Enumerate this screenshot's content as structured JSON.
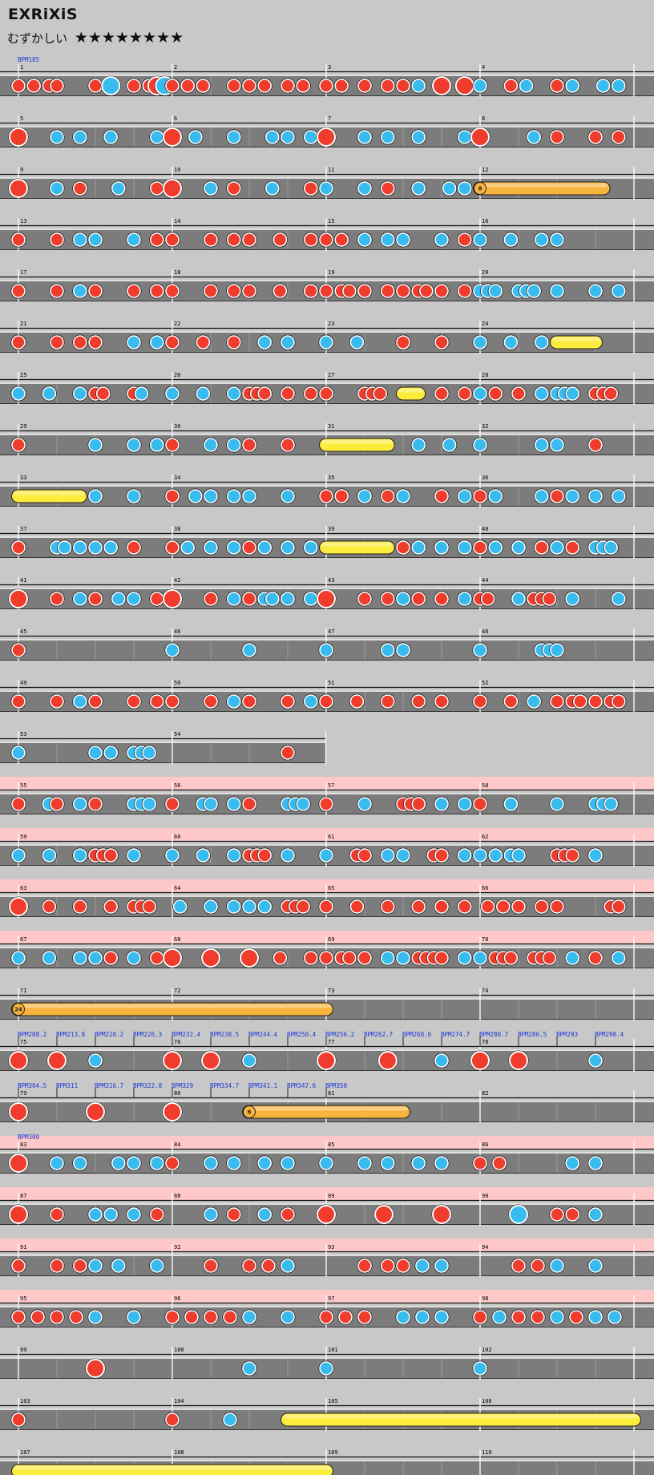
{
  "song": {
    "title": "EXRiXiS",
    "difficulty_label": "むずかしい",
    "stars": "★★★★★★★★"
  },
  "colors": {
    "background": "#c8c8c8",
    "gogo_band": "#ffc8c8",
    "lane": "#7c7c7c",
    "don": "#f03c2c",
    "ka": "#38bcf0",
    "roll": "#f8b43c",
    "balloon_roll": "#fcec3c"
  },
  "chart_data": {
    "type": "table",
    "measures_per_row": 4,
    "rows": [
      {
        "m": 1,
        "notes": "d:0.0 d:0.1 d:0.2 d:0.25 d:0.5 d:0.75 K:0.6 d:0.85 D:0.9 K:0.95 d:1.0 d:1.1 d:1.2 d:1.4 d:1.5 d:1.6 d:1.75 d:1.85 d:2.0 d:2.1 d:2.25 d:2.4 d:2.5 k:2.6 D:2.75 D:2.9 k:3.0 d:3.2 k:3.3 k:3.5 d:3.5 k:3.6 k:3.8 k:3.9",
        "bpm": [
          "BPM185"
        ]
      },
      {
        "m": 5,
        "notes": "D:0.0 k:0.25 k:0.4 k:0.6 k:0.9 D:1.0 k:1.15 k:1.4 k:1.65 k:1.75 k:1.9 D:2.0 k:2.25 k:2.4 k:2.6 k:2.9 D:3.0 k:3.35 d:3.5 d:3.75 d:3.9"
      },
      {
        "m": 9,
        "notes": "D:0.0 k:0.25 d:0.4 k:0.65 d:0.9 D:1.0 k:1.25 d:1.4 k:1.65 d:1.9 k:2.0 k:2.25 d:2.4 k:2.6 k:2.8 k:2.9 B:3.0-3.8:8"
      },
      {
        "m": 13,
        "notes": "d:0.0 d:0.25 k:0.4 k:0.5 k:0.75 d:0.9 d:1.0 d:1.25 d:1.4 d:1.5 d:1.7 d:1.9 d:2.0 d:2.1 k:2.25 k:2.4 k:2.5 k:2.75 d:2.9 k:3.0 k:3.2 k:3.4 k:3.5"
      },
      {
        "m": 17,
        "notes": "d:0.0 d:0.25 k:0.4 d:0.5 d:0.75 d:0.9 d:1.0 d:1.25 d:1.4 d:1.5 d:1.7 d:1.9 d:2.0 d:2.1 d:2.15 d:2.25 d:2.4 d:2.5 d:2.6 d:2.65 d:2.75 d:2.9 k:3.0 k:3.05 k:3.1 k:3.25 k:3.3 k:3.35 k:3.5 k:3.75 k:3.9"
      },
      {
        "m": 21,
        "notes": "d:0.0 d:0.25 d:0.4 d:0.5 k:0.75 k:0.9 d:1.0 d:1.2 d:1.4 k:1.6 k:1.75 k:2.0 k:2.2 d:2.5 d:2.75 k:3.0 k:3.2 k:3.4 Y:3.5-3.75"
      },
      {
        "m": 25,
        "notes": "k:0.0 k:0.2 k:0.4 d:0.5 d:0.55 d:0.75 k:0.8 k:1.0 k:1.2 k:1.4 d:1.5 d:1.55 d:1.6 d:1.75 d:1.9 d:2.0 d:2.25 d:2.3 d:2.35 Y:2.5-2.6 d:2.75 d:2.9 k:3.0 d:3.1 d:3.25 k:3.4 k:3.5 k:3.55 k:3.6 d:3.75 d:3.8 d:3.85"
      },
      {
        "m": 29,
        "notes": "d:0.0 k:0.5 k:0.75 k:0.9 d:1.0 k:1.25 k:1.4 d:1.5 d:1.75 Y:2.0-2.4 k:2.6 k:2.8 k:3.0 k:3.4 k:3.5 d:3.75"
      },
      {
        "m": 33,
        "notes": "Y:0.0-0.4 k:0.5 k:0.75 d:1.0 k:1.15 k:1.25 k:1.4 k:1.5 k:1.75 d:2.0 d:2.1 k:2.25 d:2.4 k:2.5 d:2.75 k:2.9 d:3.0 k:3.1 k:3.4 d:3.5 k:3.6 k:3.75 k:3.9"
      },
      {
        "m": 37,
        "notes": "d:0.0 k:0.25 k:0.3 k:0.4 k:0.5 k:0.6 d:0.75 d:1.0 k:1.1 k:1.25 k:1.4 d:1.5 k:1.6 k:1.75 k:1.9 Y:2.0-2.4 d:2.5 k:2.6 k:2.75 k:2.9 d:3.0 k:3.1 k:3.25 d:3.4 k:3.5 d:3.6 k:3.75 k:3.8 k:3.85"
      },
      {
        "m": 41,
        "notes": "D:0.0 d:0.25 k:0.4 d:0.5 k:0.65 k:0.75 d:0.9 D:1.0 d:1.25 k:1.4 d:1.5 k:1.6 k:1.65 k:1.75 k:1.9 D:2.0 d:2.25 d:2.4 k:2.5 d:2.6 d:2.75 k:2.9 d:3.0 d:3.05 k:3.25 d:3.35 d:3.4 d:3.45 k:3.6 k:3.9"
      },
      {
        "m": 45,
        "notes": "d:0.0 k:1.0 k:1.5 k:2.0 k:2.4 k:2.5 k:3.0 k:3.4 k:3.45 k:3.5"
      },
      {
        "m": 49,
        "notes": "d:0.0 d:0.25 k:0.4 d:0.5 d:0.75 d:0.9 d:1.0 d:1.25 k:1.4 d:1.5 d:1.75 k:1.9 d:2.0 d:2.2 d:2.4 d:2.6 d:2.75 d:3.0 d:3.2 k:3.35 d:3.5 d:3.6 d:3.65 d:3.75 d:3.85 d:3.9"
      },
      {
        "m": 53,
        "end": 2.0,
        "notes": "k:0.0 k:0.5 k:0.6 k:0.75 k:0.8 k:0.85 d:1.75"
      },
      {
        "m": 55,
        "gogo": true,
        "notes": "d:0.0 k:0.2 d:0.25 k:0.4 d:0.5 k:0.75 k:0.8 k:0.85 d:1.0 k:1.2 k:1.25 k:1.4 d:1.5 k:1.75 k:1.8 k:1.85 d:2.0 k:2.25 d:2.5 d:2.55 d:2.6 k:2.75 k:2.9 d:3.0 k:3.2 k:3.5 k:3.75 k:3.8 k:3.85"
      },
      {
        "m": 59,
        "gogo": true,
        "notes": "k:0.0 k:0.2 k:0.4 d:0.5 d:0.55 d:0.6 k:0.75 k:1.0 k:1.2 k:1.4 d:1.5 d:1.55 d:1.6 k:1.75 k:2.0 d:2.2 d:2.25 k:2.4 k:2.5 d:2.7 d:2.75 k:2.9 k:3.0 k:3.1 k:3.2 k:3.25 d:3.5 d:3.55 d:3.6 k:3.75"
      },
      {
        "m": 63,
        "gogo": true,
        "notes": "D:0.0 d:0.2 d:0.4 d:0.6 d:0.75 d:0.8 d:0.85 k:1.05 k:1.25 k:1.4 k:1.5 k:1.6 d:1.75 d:1.8 d:1.85 d:2.0 d:2.2 d:2.4 d:2.6 d:2.75 d:2.9 d:3.05 d:3.15 d:3.25 d:3.4 d:3.5 d:3.85 d:3.9"
      },
      {
        "m": 67,
        "gogo": true,
        "notes": "k:0.0 k:0.2 k:0.4 k:0.5 d:0.6 k:0.75 d:0.9 D:1.0 D:1.25 D:1.5 d:1.7 d:1.9 d:2.0 d:2.1 d:2.15 d:2.25 k:2.4 k:2.5 d:2.6 d:2.65 d:2.7 d:2.75 k:2.9 k:3.0 d:3.1 d:3.15 d:3.2 d:3.35 d:3.4 d:3.45 k:3.6 d:3.75 k:3.9"
      },
      {
        "m": 71,
        "notes": "R:0.0-2.0:24"
      },
      {
        "m": 75,
        "notes": "D:0.0 D:0.25 k:0.5 D:1.0 D:1.25 k:1.5 D:2.0 D:2.4 k:2.75 D:3.0 D:3.25 k:3.75",
        "bpm": [
          "BPM208.2",
          "BPM213.8",
          "BPM220.2",
          "BPM226.3",
          "BPM232.4",
          "BPM238.5",
          "BPM244.4",
          "BPM250.4",
          "BPM256.2",
          "BPM262.7",
          "BPM268.6",
          "BPM274.7",
          "BPM280.7",
          "BPM286.5",
          "BPM293",
          "BPM298.4"
        ]
      },
      {
        "m": 79,
        "notes": "D:0.0 D:0.5 D:1.0 R:1.5-2.5:6",
        "bpm": [
          "BPM304.5",
          "BPM311",
          "BPM316.7",
          "BPM322.8",
          "BPM329",
          "BPM334.7",
          "BPM341.1",
          "BPM347.6",
          "BPM350"
        ]
      },
      {
        "m": 83,
        "gogo": true,
        "notes": "D:0.0 k:0.25 k:0.4 k:0.65 k:0.75 k:0.9 d:1.0 k:1.25 k:1.4 k:1.6 k:1.75 k:2.0 k:2.25 k:2.4 k:2.6 k:2.75 d:3.0 d:3.125 k:3.6 k:3.75",
        "bpm": [
          "BPM300"
        ]
      },
      {
        "m": 87,
        "gogo": true,
        "notes": "D:0.0 d:0.25 k:0.5 k:0.6 k:0.75 d:0.9 k:1.25 d:1.4 k:1.6 d:1.75 D:2.0 D:2.375 D:2.75 K:3.25 d:3.5 d:3.6 k:3.75"
      },
      {
        "m": 91,
        "gogo": true,
        "notes": "d:0.0 d:0.25 d:0.4 k:0.5 k:0.65 k:0.9 d:1.25 d:1.5 d:1.625 k:1.75 d:2.25 d:2.4 d:2.5 k:2.625 k:2.75 d:3.25 d:3.375 k:3.5 k:3.75"
      },
      {
        "m": 95,
        "gogo": true,
        "notes": "d:0.0 d:0.125 d:0.25 d:0.375 k:0.5 k:0.75 d:1.0 d:1.125 d:1.25 d:1.375 k:1.5 k:1.75 d:2.0 d:2.125 d:2.25 k:2.5 k:2.625 k:2.75 d:3.0 k:3.125 d:3.25 d:3.375 k:3.5 d:3.625 k:3.75 k:3.875"
      },
      {
        "m": 99,
        "notes": "D:0.5 k:1.5 k:2.0 k:3.0"
      },
      {
        "m": 103,
        "notes": "d:0.0 d:1.0 k:1.375 Y:1.75-4.0"
      },
      {
        "m": 107,
        "notes": "Y:0.0-2.0"
      }
    ]
  }
}
